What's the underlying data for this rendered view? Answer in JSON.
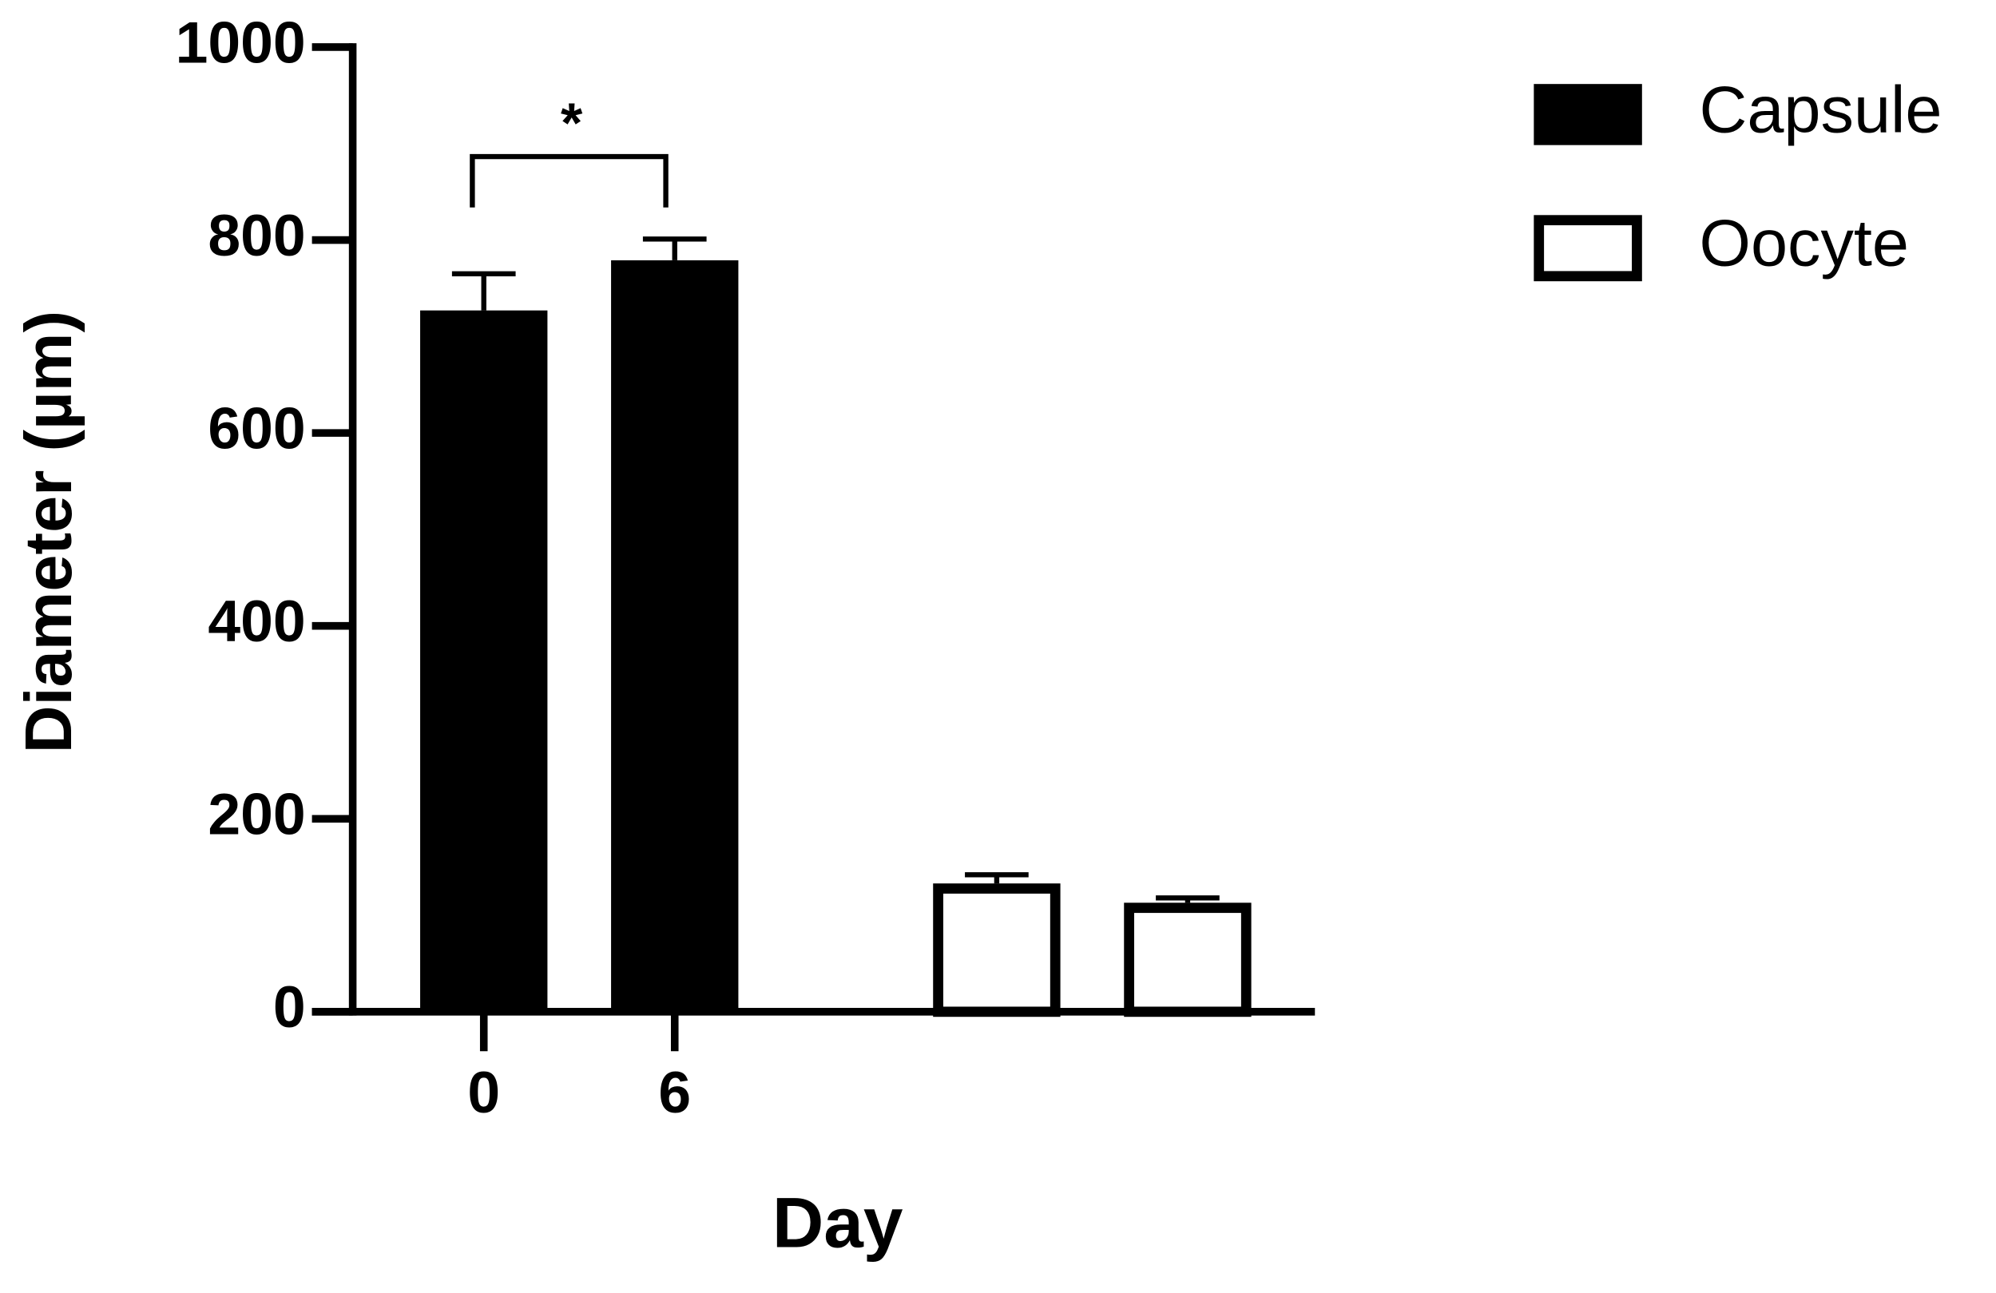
{
  "chart_data": {
    "type": "bar",
    "x_label": "Day",
    "y_label": "Diameter (µm)",
    "categories": [
      "0",
      "6",
      null,
      null
    ],
    "series": [
      {
        "name": "Capsule",
        "color": "#000000",
        "fill": "solid",
        "values": [
          727,
          779,
          null,
          null
        ],
        "errors": [
          38,
          22,
          null,
          null
        ]
      },
      {
        "name": "Oocyte",
        "color": "#000000",
        "fill": "hollow",
        "values": [
          null,
          null,
          133,
          113
        ],
        "errors": [
          null,
          null,
          9,
          5
        ]
      }
    ],
    "ylim": [
      0,
      1000
    ],
    "yticks": [
      0,
      200,
      400,
      600,
      800,
      1000
    ],
    "annotations": [
      {
        "text": "*"
      }
    ],
    "legend": "top-right"
  }
}
